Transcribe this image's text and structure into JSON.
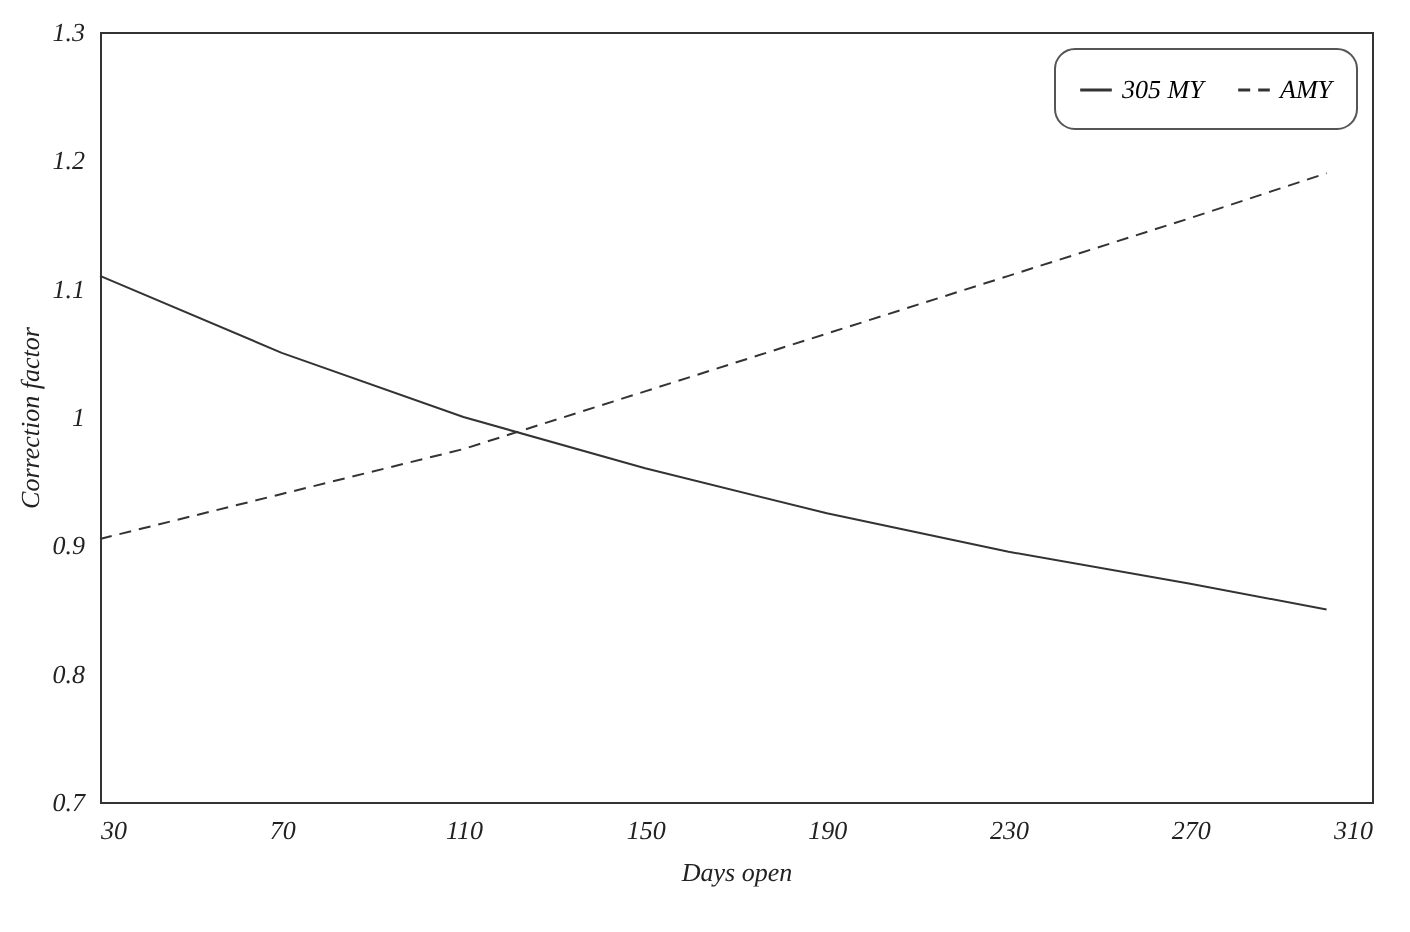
{
  "chart_data": {
    "type": "line",
    "xlabel": "Days open",
    "ylabel": "Correction factor",
    "x": [
      30,
      70,
      110,
      150,
      190,
      230,
      270,
      300
    ],
    "series": [
      {
        "name": "305 MY",
        "color": "#333333",
        "line_style": "solid",
        "values": [
          1.11,
          1.05,
          1.0,
          0.96,
          0.925,
          0.895,
          0.87,
          0.85
        ]
      },
      {
        "name": "AMY",
        "color": "#333333",
        "line_style": "dashed",
        "values": [
          0.905,
          0.94,
          0.975,
          1.02,
          1.065,
          1.11,
          1.155,
          1.19
        ]
      }
    ],
    "xlim": [
      30,
      310
    ],
    "xticks": [
      30,
      70,
      110,
      150,
      190,
      230,
      270,
      310
    ],
    "ylim": [
      0.7,
      1.3
    ],
    "yticks": [
      0.7,
      0.8,
      0.9,
      1,
      1.1,
      1.2,
      1.3
    ],
    "grid": false,
    "legend": "top right",
    "marker": "none"
  }
}
